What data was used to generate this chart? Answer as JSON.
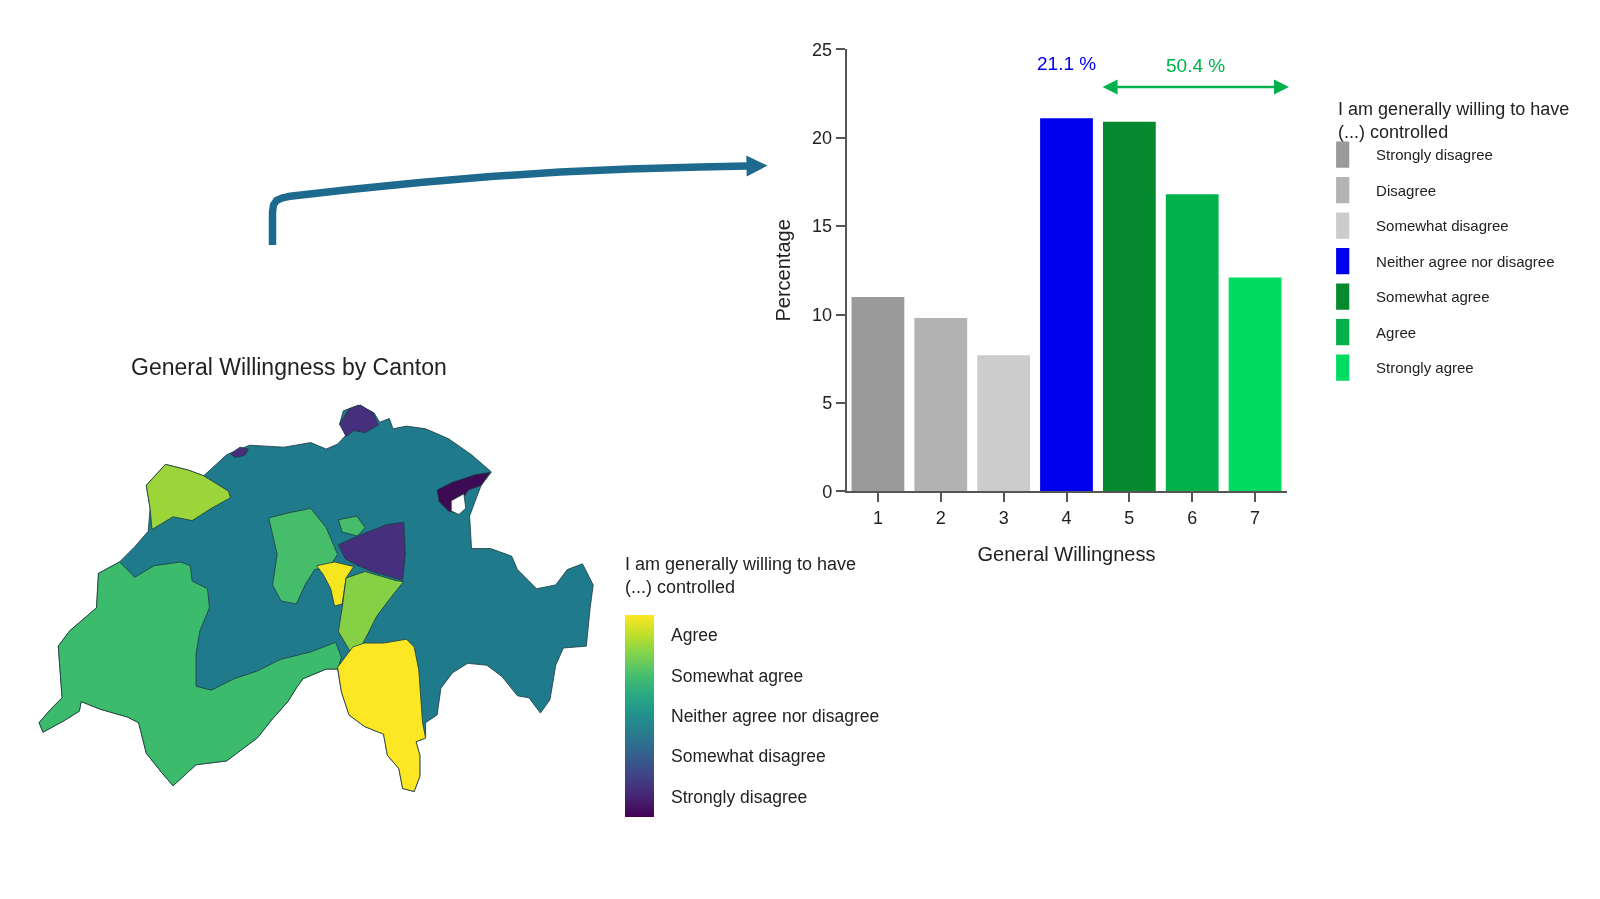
{
  "chart_data": [
    {
      "type": "bar",
      "categories": [
        "1",
        "2",
        "3",
        "4",
        "5",
        "6",
        "7"
      ],
      "series": [
        {
          "name": "Strongly disagree",
          "color": "#9a9a9a",
          "values": [
            11.0,
            null,
            null,
            null,
            null,
            null,
            null
          ]
        },
        {
          "name": "Disagree",
          "color": "#b3b3b3",
          "values": [
            null,
            9.8,
            null,
            null,
            null,
            null,
            null
          ]
        },
        {
          "name": "Somewhat disagree",
          "color": "#cccccc",
          "values": [
            null,
            null,
            7.7,
            null,
            null,
            null,
            null
          ]
        },
        {
          "name": "Neither agree nor disagree",
          "color": "#0000ee",
          "values": [
            null,
            null,
            null,
            21.1,
            null,
            null,
            null
          ],
          "value_labels": [
            null,
            null,
            null,
            "21.1 %",
            null,
            null,
            null
          ]
        },
        {
          "name": "Somewhat agree",
          "color": "#068a30",
          "values": [
            null,
            null,
            null,
            null,
            20.9,
            null,
            null
          ]
        },
        {
          "name": "Agree",
          "color": "#00b14c",
          "values": [
            null,
            null,
            null,
            null,
            null,
            16.8,
            null
          ]
        },
        {
          "name": "Strongly agree",
          "color": "#00dc62",
          "values": [
            null,
            null,
            null,
            null,
            null,
            null,
            12.1
          ]
        }
      ],
      "xlabel": "General Willingness",
      "ylabel": "Percentage",
      "ylim": [
        0,
        25
      ],
      "yticks": [
        0,
        5,
        10,
        15,
        20,
        25
      ],
      "legend": "right",
      "legend_title": "I am generally willing to have (...) controlled",
      "annotations": [
        "50.4 %"
      ]
    },
    {
      "type": "other",
      "title": "General Willingness by Canton",
      "clabel": "I am generally willing to have (...) controlled",
      "annotations": [
        "Agree",
        "Somewhat agree",
        "Neither agree nor disagree",
        "Somewhat disagree",
        "Strongly disagree"
      ]
    }
  ]
}
